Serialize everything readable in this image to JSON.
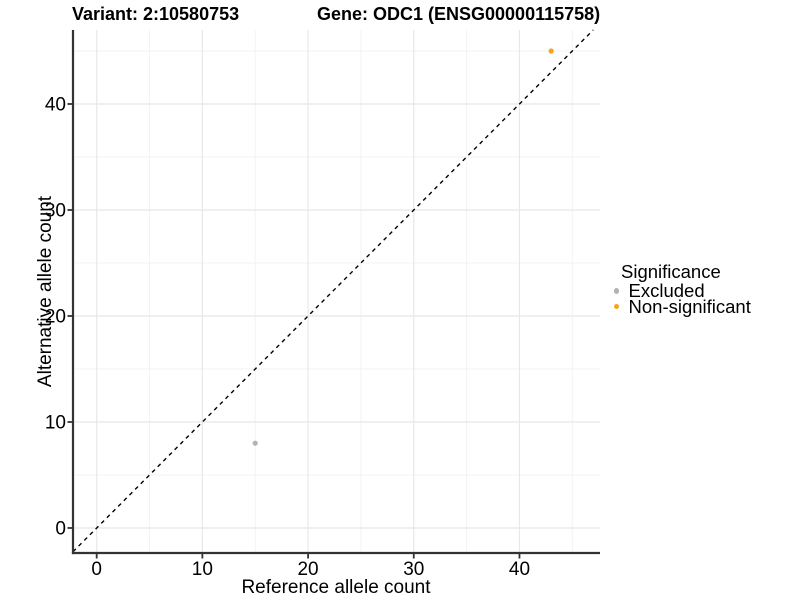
{
  "header": {
    "variant_title": "Variant: 2:10580753",
    "gene_title": "Gene: ODC1 (ENSG00000115758)"
  },
  "chart_data": {
    "type": "scatter",
    "xlabel": "Reference allele count",
    "ylabel": "Alternative allele count",
    "xlim": [
      -2.24,
      47.62
    ],
    "ylim": [
      -2.36,
      46.98
    ],
    "xticks": [
      0,
      10,
      20,
      30,
      40
    ],
    "yticks": [
      0,
      10,
      20,
      30,
      40
    ],
    "xminor": [
      5,
      15,
      25,
      35,
      45
    ],
    "yminor": [
      5,
      15,
      25,
      35,
      45
    ],
    "grid": "on",
    "identity_line": {
      "slope": 1,
      "intercept": 0,
      "style": "dashed",
      "color": "#000000"
    },
    "series": [
      {
        "name": "Excluded",
        "color": "#B3B3B3",
        "points": [
          {
            "x": 15,
            "y": 8
          }
        ]
      },
      {
        "name": "Non-significant",
        "color": "#F9A31B",
        "points": [
          {
            "x": 43,
            "y": 45
          }
        ]
      }
    ],
    "legend": {
      "title": "Significance",
      "position": "right",
      "entries": [
        {
          "label": "Excluded",
          "color": "#B3B3B3"
        },
        {
          "label": "Non-significant",
          "color": "#F9A31B"
        }
      ]
    }
  },
  "style": {
    "grid_major_color": "#E8E8E8",
    "grid_minor_color": "#F2F2F2",
    "axis_color": "#333333",
    "text_color": "#000000"
  }
}
